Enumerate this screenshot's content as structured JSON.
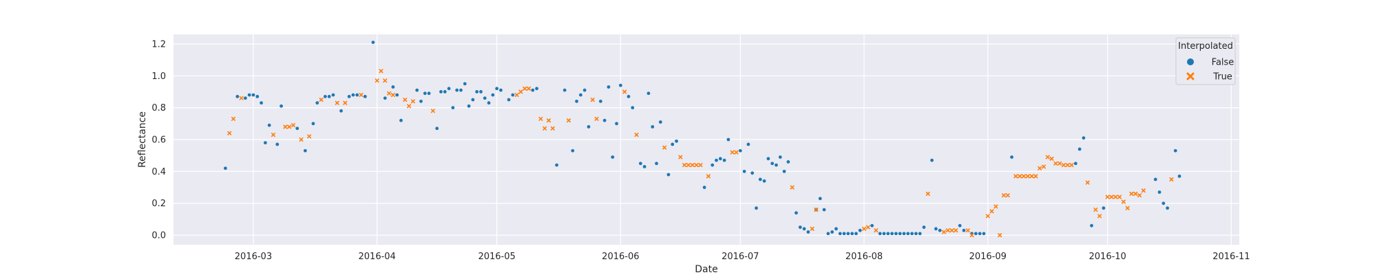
{
  "chart_data": {
    "type": "scatter",
    "xlabel": "Date",
    "ylabel": "Reflectance",
    "xlim": [
      "2016-02-10",
      "2016-11-03"
    ],
    "ylim": [
      -0.06,
      1.26
    ],
    "x_ticks": [
      "2016-03",
      "2016-04",
      "2016-05",
      "2016-06",
      "2016-07",
      "2016-08",
      "2016-09",
      "2016-10",
      "2016-11"
    ],
    "y_ticks": [
      "0.0",
      "0.2",
      "0.4",
      "0.6",
      "0.8",
      "1.0",
      "1.2"
    ],
    "grid": true,
    "background": "#eaeaf2",
    "legend": {
      "title": "Interpolated",
      "placement": "top-right"
    },
    "series": [
      {
        "name": "False",
        "marker": "circle",
        "color": "#1f77b4",
        "points": [
          [
            "2016-02-23",
            0.42
          ],
          [
            "2016-02-26",
            0.87
          ],
          [
            "2016-02-28",
            0.86
          ],
          [
            "2016-02-29",
            0.88
          ],
          [
            "2016-03-01",
            0.88
          ],
          [
            "2016-03-02",
            0.87
          ],
          [
            "2016-03-03",
            0.83
          ],
          [
            "2016-03-04",
            0.58
          ],
          [
            "2016-03-05",
            0.69
          ],
          [
            "2016-03-07",
            0.57
          ],
          [
            "2016-03-08",
            0.81
          ],
          [
            "2016-03-12",
            0.67
          ],
          [
            "2016-03-14",
            0.53
          ],
          [
            "2016-03-16",
            0.7
          ],
          [
            "2016-03-17",
            0.83
          ],
          [
            "2016-03-19",
            0.87
          ],
          [
            "2016-03-20",
            0.87
          ],
          [
            "2016-03-21",
            0.88
          ],
          [
            "2016-03-23",
            0.78
          ],
          [
            "2016-03-25",
            0.87
          ],
          [
            "2016-03-26",
            0.88
          ],
          [
            "2016-03-27",
            0.88
          ],
          [
            "2016-03-29",
            0.87
          ],
          [
            "2016-03-31",
            1.21
          ],
          [
            "2016-04-03",
            0.86
          ],
          [
            "2016-04-05",
            0.93
          ],
          [
            "2016-04-06",
            0.88
          ],
          [
            "2016-04-07",
            0.72
          ],
          [
            "2016-04-11",
            0.91
          ],
          [
            "2016-04-12",
            0.84
          ],
          [
            "2016-04-13",
            0.89
          ],
          [
            "2016-04-14",
            0.89
          ],
          [
            "2016-04-16",
            0.67
          ],
          [
            "2016-04-17",
            0.9
          ],
          [
            "2016-04-18",
            0.9
          ],
          [
            "2016-04-19",
            0.92
          ],
          [
            "2016-04-20",
            0.8
          ],
          [
            "2016-04-21",
            0.91
          ],
          [
            "2016-04-22",
            0.91
          ],
          [
            "2016-04-23",
            0.95
          ],
          [
            "2016-04-24",
            0.81
          ],
          [
            "2016-04-25",
            0.85
          ],
          [
            "2016-04-26",
            0.9
          ],
          [
            "2016-04-27",
            0.9
          ],
          [
            "2016-04-28",
            0.86
          ],
          [
            "2016-04-29",
            0.83
          ],
          [
            "2016-04-30",
            0.88
          ],
          [
            "2016-05-01",
            0.92
          ],
          [
            "2016-05-02",
            0.91
          ],
          [
            "2016-05-04",
            0.85
          ],
          [
            "2016-05-05",
            0.88
          ],
          [
            "2016-05-10",
            0.91
          ],
          [
            "2016-05-11",
            0.92
          ],
          [
            "2016-05-16",
            0.44
          ],
          [
            "2016-05-18",
            0.91
          ],
          [
            "2016-05-20",
            0.53
          ],
          [
            "2016-05-21",
            0.84
          ],
          [
            "2016-05-22",
            0.88
          ],
          [
            "2016-05-23",
            0.91
          ],
          [
            "2016-05-24",
            0.68
          ],
          [
            "2016-05-27",
            0.84
          ],
          [
            "2016-05-28",
            0.72
          ],
          [
            "2016-05-29",
            0.93
          ],
          [
            "2016-05-30",
            0.49
          ],
          [
            "2016-05-31",
            0.7
          ],
          [
            "2016-06-01",
            0.94
          ],
          [
            "2016-06-03",
            0.87
          ],
          [
            "2016-06-04",
            0.8
          ],
          [
            "2016-06-06",
            0.45
          ],
          [
            "2016-06-07",
            0.43
          ],
          [
            "2016-06-08",
            0.89
          ],
          [
            "2016-06-09",
            0.68
          ],
          [
            "2016-06-10",
            0.45
          ],
          [
            "2016-06-11",
            0.71
          ],
          [
            "2016-06-13",
            0.38
          ],
          [
            "2016-06-14",
            0.57
          ],
          [
            "2016-06-15",
            0.59
          ],
          [
            "2016-06-22",
            0.3
          ],
          [
            "2016-06-24",
            0.44
          ],
          [
            "2016-06-25",
            0.47
          ],
          [
            "2016-06-26",
            0.48
          ],
          [
            "2016-06-27",
            0.47
          ],
          [
            "2016-06-28",
            0.6
          ],
          [
            "2016-07-01",
            0.53
          ],
          [
            "2016-07-02",
            0.4
          ],
          [
            "2016-07-03",
            0.57
          ],
          [
            "2016-07-04",
            0.39
          ],
          [
            "2016-07-05",
            0.17
          ],
          [
            "2016-07-06",
            0.35
          ],
          [
            "2016-07-07",
            0.34
          ],
          [
            "2016-07-08",
            0.48
          ],
          [
            "2016-07-09",
            0.45
          ],
          [
            "2016-07-10",
            0.44
          ],
          [
            "2016-07-11",
            0.49
          ],
          [
            "2016-07-12",
            0.4
          ],
          [
            "2016-07-13",
            0.46
          ],
          [
            "2016-07-15",
            0.14
          ],
          [
            "2016-07-16",
            0.05
          ],
          [
            "2016-07-17",
            0.04
          ],
          [
            "2016-07-18",
            0.02
          ],
          [
            "2016-07-20",
            0.16
          ],
          [
            "2016-07-21",
            0.23
          ],
          [
            "2016-07-22",
            0.16
          ],
          [
            "2016-07-23",
            0.01
          ],
          [
            "2016-07-24",
            0.02
          ],
          [
            "2016-07-25",
            0.04
          ],
          [
            "2016-07-26",
            0.01
          ],
          [
            "2016-07-27",
            0.01
          ],
          [
            "2016-07-28",
            0.01
          ],
          [
            "2016-07-29",
            0.01
          ],
          [
            "2016-07-30",
            0.01
          ],
          [
            "2016-07-31",
            0.03
          ],
          [
            "2016-08-03",
            0.06
          ],
          [
            "2016-08-05",
            0.01
          ],
          [
            "2016-08-06",
            0.01
          ],
          [
            "2016-08-07",
            0.01
          ],
          [
            "2016-08-08",
            0.01
          ],
          [
            "2016-08-09",
            0.01
          ],
          [
            "2016-08-10",
            0.01
          ],
          [
            "2016-08-11",
            0.01
          ],
          [
            "2016-08-12",
            0.01
          ],
          [
            "2016-08-13",
            0.01
          ],
          [
            "2016-08-14",
            0.01
          ],
          [
            "2016-08-15",
            0.01
          ],
          [
            "2016-08-16",
            0.05
          ],
          [
            "2016-08-18",
            0.47
          ],
          [
            "2016-08-19",
            0.04
          ],
          [
            "2016-08-20",
            0.03
          ],
          [
            "2016-08-25",
            0.06
          ],
          [
            "2016-08-26",
            0.03
          ],
          [
            "2016-08-28",
            0.01
          ],
          [
            "2016-08-29",
            0.01
          ],
          [
            "2016-08-30",
            0.01
          ],
          [
            "2016-08-31",
            0.01
          ],
          [
            "2016-09-07",
            0.49
          ],
          [
            "2016-09-23",
            0.45
          ],
          [
            "2016-09-24",
            0.54
          ],
          [
            "2016-09-25",
            0.61
          ],
          [
            "2016-09-27",
            0.06
          ],
          [
            "2016-09-30",
            0.17
          ],
          [
            "2016-10-13",
            0.35
          ],
          [
            "2016-10-14",
            0.27
          ],
          [
            "2016-10-15",
            0.2
          ],
          [
            "2016-10-16",
            0.17
          ],
          [
            "2016-10-18",
            0.53
          ],
          [
            "2016-10-19",
            0.37
          ]
        ]
      },
      {
        "name": "True",
        "marker": "x",
        "color": "#ff7f0e",
        "points": [
          [
            "2016-02-24",
            0.64
          ],
          [
            "2016-02-25",
            0.73
          ],
          [
            "2016-02-27",
            0.86
          ],
          [
            "2016-03-06",
            0.63
          ],
          [
            "2016-03-09",
            0.68
          ],
          [
            "2016-03-10",
            0.68
          ],
          [
            "2016-03-11",
            0.69
          ],
          [
            "2016-03-13",
            0.6
          ],
          [
            "2016-03-15",
            0.62
          ],
          [
            "2016-03-18",
            0.85
          ],
          [
            "2016-03-22",
            0.83
          ],
          [
            "2016-03-24",
            0.83
          ],
          [
            "2016-03-28",
            0.88
          ],
          [
            "2016-04-01",
            0.97
          ],
          [
            "2016-04-02",
            1.03
          ],
          [
            "2016-04-03",
            0.97
          ],
          [
            "2016-04-04",
            0.89
          ],
          [
            "2016-04-05",
            0.88
          ],
          [
            "2016-04-08",
            0.85
          ],
          [
            "2016-04-09",
            0.81
          ],
          [
            "2016-04-10",
            0.84
          ],
          [
            "2016-04-15",
            0.78
          ],
          [
            "2016-05-06",
            0.88
          ],
          [
            "2016-05-07",
            0.9
          ],
          [
            "2016-05-08",
            0.92
          ],
          [
            "2016-05-09",
            0.92
          ],
          [
            "2016-05-12",
            0.73
          ],
          [
            "2016-05-13",
            0.67
          ],
          [
            "2016-05-14",
            0.72
          ],
          [
            "2016-05-15",
            0.67
          ],
          [
            "2016-05-19",
            0.72
          ],
          [
            "2016-05-25",
            0.85
          ],
          [
            "2016-05-26",
            0.73
          ],
          [
            "2016-06-02",
            0.9
          ],
          [
            "2016-06-05",
            0.63
          ],
          [
            "2016-06-12",
            0.55
          ],
          [
            "2016-06-16",
            0.49
          ],
          [
            "2016-06-17",
            0.44
          ],
          [
            "2016-06-18",
            0.44
          ],
          [
            "2016-06-19",
            0.44
          ],
          [
            "2016-06-20",
            0.44
          ],
          [
            "2016-06-21",
            0.44
          ],
          [
            "2016-06-23",
            0.37
          ],
          [
            "2016-06-29",
            0.52
          ],
          [
            "2016-06-30",
            0.52
          ],
          [
            "2016-07-14",
            0.3
          ],
          [
            "2016-07-19",
            0.04
          ],
          [
            "2016-07-20",
            0.16
          ],
          [
            "2016-08-01",
            0.04
          ],
          [
            "2016-08-02",
            0.05
          ],
          [
            "2016-08-04",
            0.03
          ],
          [
            "2016-08-17",
            0.26
          ],
          [
            "2016-08-21",
            0.02
          ],
          [
            "2016-08-22",
            0.03
          ],
          [
            "2016-08-23",
            0.03
          ],
          [
            "2016-08-24",
            0.03
          ],
          [
            "2016-08-27",
            0.03
          ],
          [
            "2016-08-28",
            0.0
          ],
          [
            "2016-09-01",
            0.12
          ],
          [
            "2016-09-02",
            0.15
          ],
          [
            "2016-09-03",
            0.18
          ],
          [
            "2016-09-04",
            0.0
          ],
          [
            "2016-09-05",
            0.25
          ],
          [
            "2016-09-06",
            0.25
          ],
          [
            "2016-09-08",
            0.37
          ],
          [
            "2016-09-09",
            0.37
          ],
          [
            "2016-09-10",
            0.37
          ],
          [
            "2016-09-11",
            0.37
          ],
          [
            "2016-09-12",
            0.37
          ],
          [
            "2016-09-13",
            0.37
          ],
          [
            "2016-09-14",
            0.42
          ],
          [
            "2016-09-15",
            0.43
          ],
          [
            "2016-09-16",
            0.49
          ],
          [
            "2016-09-17",
            0.48
          ],
          [
            "2016-09-18",
            0.45
          ],
          [
            "2016-09-19",
            0.45
          ],
          [
            "2016-09-20",
            0.44
          ],
          [
            "2016-09-21",
            0.44
          ],
          [
            "2016-09-22",
            0.44
          ],
          [
            "2016-09-26",
            0.33
          ],
          [
            "2016-09-28",
            0.16
          ],
          [
            "2016-09-29",
            0.12
          ],
          [
            "2016-10-01",
            0.24
          ],
          [
            "2016-10-02",
            0.24
          ],
          [
            "2016-10-03",
            0.24
          ],
          [
            "2016-10-04",
            0.24
          ],
          [
            "2016-10-05",
            0.21
          ],
          [
            "2016-10-06",
            0.17
          ],
          [
            "2016-10-07",
            0.26
          ],
          [
            "2016-10-08",
            0.26
          ],
          [
            "2016-10-09",
            0.25
          ],
          [
            "2016-10-10",
            0.28
          ],
          [
            "2016-10-17",
            0.35
          ]
        ]
      }
    ]
  }
}
